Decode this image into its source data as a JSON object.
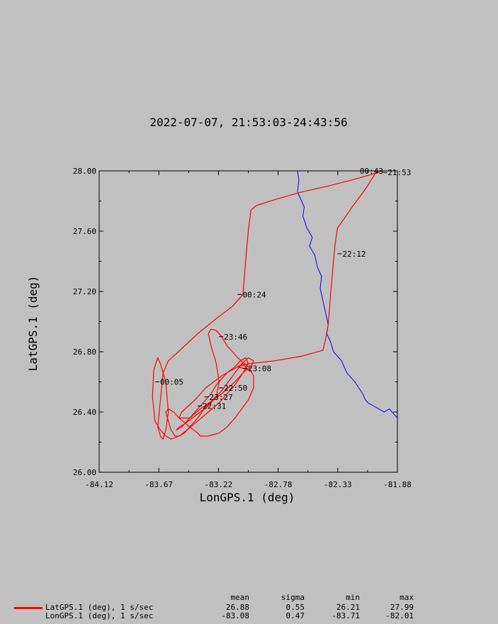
{
  "chart_data": {
    "type": "line",
    "title": "2022-07-07, 21:53:03-24:43:56",
    "xlabel": "LonGPS.1 (deg)",
    "ylabel": "LatGPS.1 (deg)",
    "xlim": [
      -84.12,
      -81.88
    ],
    "ylim": [
      26.0,
      28.0
    ],
    "x_ticks": [
      "-84.12",
      "-83.67",
      "-83.22",
      "-82.78",
      "-82.33",
      "-81.88"
    ],
    "y_ticks": [
      "28.00",
      "27.60",
      "27.20",
      "26.80",
      "26.40",
      "26.00"
    ],
    "grid": false,
    "colors": {
      "track": "#ff0000",
      "coastline": "#0000ff",
      "background": "#c0c0c0"
    },
    "series": [
      {
        "name": "LatGPS.1 (deg), 1 s/sec",
        "x": [
          -82.04,
          -82.12,
          -82.22,
          -82.33,
          -82.35,
          -82.38,
          -82.4,
          -82.42,
          -82.44,
          -82.6,
          -82.8,
          -83.0,
          -83.08,
          -83.0,
          -83.02,
          -83.04,
          -83.2,
          -83.32,
          -83.4,
          -83.5,
          -83.52,
          -83.44,
          -83.36,
          -83.2,
          -83.1,
          -83.04,
          -82.98,
          -82.96,
          -83.0,
          -83.05,
          -83.1,
          -83.15,
          -83.2,
          -83.27,
          -83.33,
          -83.38,
          -83.44,
          -83.48,
          -83.52,
          -83.55,
          -83.58,
          -83.6,
          -83.62,
          -83.6,
          -83.56,
          -83.52,
          -83.44,
          -83.38,
          -83.36,
          -83.3,
          -83.22,
          -83.16,
          -83.1,
          -83.05,
          -83.0,
          -82.96,
          -82.96,
          -83.0,
          -83.08,
          -83.16,
          -83.2,
          -83.24,
          -83.28,
          -83.3,
          -83.28,
          -83.24,
          -83.22,
          -83.24,
          -83.3,
          -83.36,
          -83.42,
          -83.48,
          -83.52,
          -83.54,
          -83.5,
          -83.46,
          -83.4,
          -83.34,
          -83.28,
          -83.24,
          -83.2,
          -83.16,
          -83.1,
          -83.06,
          -83.02,
          -83.0,
          -83.04,
          -83.1,
          -83.16,
          -83.22,
          -83.3,
          -83.38,
          -83.46,
          -83.52,
          -83.58,
          -83.62,
          -83.66,
          -83.7,
          -83.72,
          -83.71,
          -83.68,
          -83.66,
          -83.62,
          -83.6,
          -83.62,
          -83.64,
          -83.66,
          -83.68,
          -83.66,
          -83.64,
          -83.6,
          -83.5,
          -83.38,
          -83.24,
          -83.12,
          -83.04,
          -83.02,
          -83.0,
          -82.98,
          -82.94,
          -82.8,
          -82.6,
          -82.4,
          -82.22,
          -82.06,
          -81.99
        ],
        "y": [
          27.99,
          27.88,
          27.76,
          27.62,
          27.5,
          27.2,
          26.98,
          26.88,
          26.81,
          26.77,
          26.74,
          26.72,
          26.7,
          26.68,
          26.7,
          26.72,
          26.64,
          26.56,
          26.48,
          26.4,
          26.36,
          26.36,
          26.42,
          26.52,
          26.6,
          26.66,
          26.7,
          26.74,
          26.76,
          26.72,
          26.66,
          26.6,
          26.54,
          26.48,
          26.42,
          26.36,
          26.3,
          26.26,
          26.24,
          26.24,
          26.28,
          26.34,
          26.4,
          26.42,
          26.4,
          26.36,
          26.3,
          26.26,
          26.24,
          26.24,
          26.26,
          26.3,
          26.36,
          26.42,
          26.48,
          26.56,
          26.64,
          26.7,
          26.76,
          26.84,
          26.9,
          26.94,
          26.95,
          26.92,
          26.84,
          26.72,
          26.6,
          26.5,
          26.44,
          26.4,
          26.36,
          26.32,
          26.3,
          26.28,
          26.3,
          26.34,
          26.4,
          26.46,
          26.52,
          26.58,
          26.62,
          26.66,
          26.7,
          26.74,
          26.76,
          26.72,
          26.66,
          26.58,
          26.52,
          26.46,
          26.4,
          26.34,
          26.28,
          26.24,
          26.22,
          26.24,
          26.28,
          26.34,
          26.5,
          26.68,
          26.76,
          26.72,
          26.6,
          26.4,
          26.28,
          26.22,
          26.24,
          26.3,
          26.48,
          26.66,
          26.74,
          26.82,
          26.92,
          27.02,
          27.1,
          27.18,
          27.4,
          27.6,
          27.74,
          27.77,
          27.81,
          27.86,
          27.9,
          27.94,
          27.98,
          28.0
        ]
      }
    ],
    "time_labels": [
      {
        "label": "21:53",
        "lon": -81.99,
        "lat": 27.99
      },
      {
        "label": "00:43",
        "lon": -82.2,
        "lat": 28.0
      },
      {
        "label": "22:12",
        "lon": -82.33,
        "lat": 27.45
      },
      {
        "label": "00:24",
        "lon": -83.08,
        "lat": 27.18
      },
      {
        "label": "23:46",
        "lon": -83.22,
        "lat": 26.9
      },
      {
        "label": "23:08",
        "lon": -83.04,
        "lat": 26.69
      },
      {
        "label": "00:05",
        "lon": -83.7,
        "lat": 26.6
      },
      {
        "label": "22:50",
        "lon": -83.22,
        "lat": 26.56
      },
      {
        "label": "23:27",
        "lon": -83.33,
        "lat": 26.5
      },
      {
        "label": "22:31",
        "lon": -83.38,
        "lat": 26.44
      }
    ],
    "coastline": {
      "lon": [
        -82.63,
        -82.62,
        -82.63,
        -82.6,
        -82.58,
        -82.59,
        -82.56,
        -82.52,
        -82.54,
        -82.5,
        -82.48,
        -82.45,
        -82.46,
        -82.44,
        -82.42,
        -82.4,
        -82.41,
        -82.38,
        -82.36,
        -82.34,
        -82.3,
        -82.28,
        -82.26,
        -82.22,
        -82.2,
        -82.17,
        -82.14,
        -82.12,
        -82.1,
        -82.06,
        -82.02,
        -81.98,
        -81.94,
        -81.9,
        -81.88
      ],
      "lat": [
        28.0,
        27.94,
        27.86,
        27.8,
        27.76,
        27.7,
        27.62,
        27.56,
        27.5,
        27.44,
        27.36,
        27.3,
        27.22,
        27.14,
        27.06,
        26.98,
        26.92,
        26.86,
        26.8,
        26.78,
        26.74,
        26.7,
        26.66,
        26.62,
        26.6,
        26.56,
        26.52,
        26.48,
        26.46,
        26.44,
        26.42,
        26.4,
        26.42,
        26.38,
        26.36
      ]
    },
    "legend": {
      "placement": "bottom",
      "headers": [
        "mean",
        "sigma",
        "min",
        "max"
      ],
      "rows": [
        {
          "label": "LatGPS.1 (deg), 1 s/sec",
          "color": "#ff0000",
          "mean": "26.88",
          "sigma": "0.55",
          "min": "26.21",
          "max": "27.99"
        },
        {
          "label": "LonGPS.1 (deg), 1 s/sec",
          "color": "",
          "mean": "-83.08",
          "sigma": "0.47",
          "min": "-83.71",
          "max": "-82.01"
        }
      ]
    }
  }
}
